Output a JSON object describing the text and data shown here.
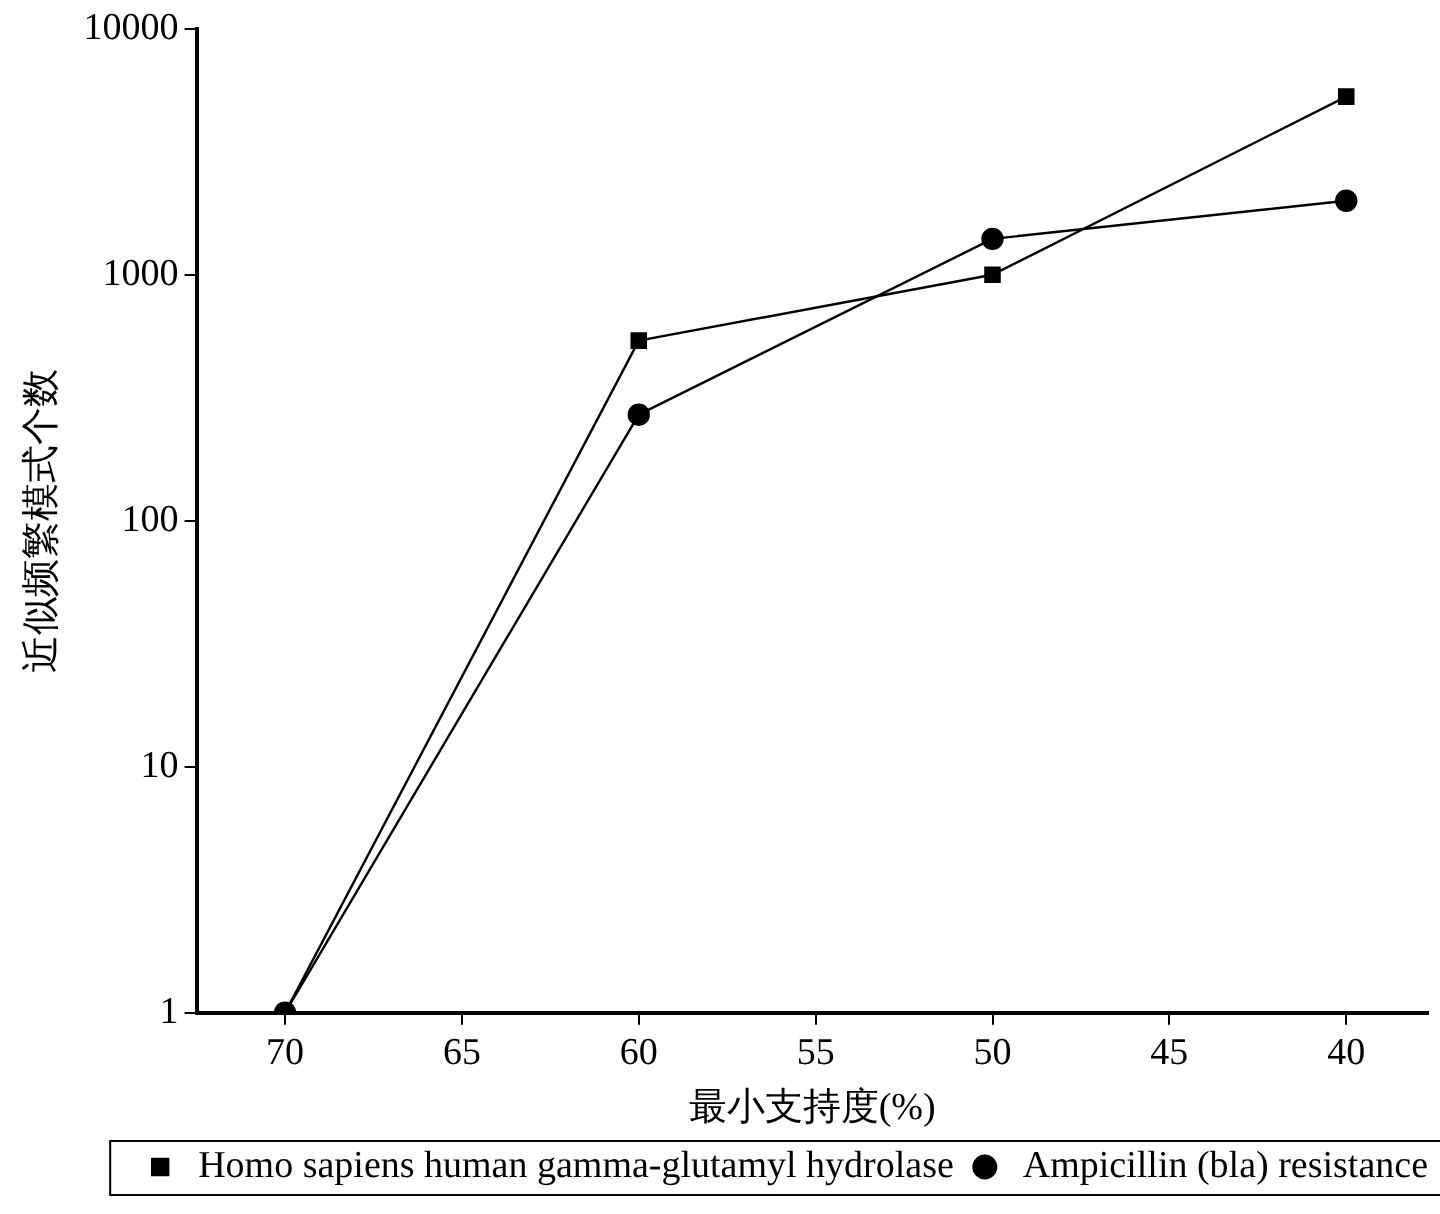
{
  "chart_data": {
    "type": "line",
    "xlabel": "最小支持度(%)",
    "ylabel": "近似频繁模式个数",
    "x": [
      70,
      60,
      50,
      40
    ],
    "xlim": [
      72.5,
      37.7
    ],
    "xticks": [
      70,
      65,
      60,
      55,
      50,
      45,
      40
    ],
    "ylim": [
      1,
      10000
    ],
    "yticks": [
      1,
      10,
      100,
      1000,
      10000
    ],
    "log": "y",
    "grid": false,
    "legend": "bottom",
    "series": [
      {
        "name": "Homo sapiens human gamma-glutamyl hydrolase",
        "color": "#000000",
        "marker": "square",
        "values": [
          1,
          540,
          1000,
          5300
        ]
      },
      {
        "name": "Ampicillin (bla) resistance",
        "color": "#000000",
        "marker": "circle",
        "values": [
          1,
          270,
          1400,
          2000
        ]
      }
    ]
  }
}
